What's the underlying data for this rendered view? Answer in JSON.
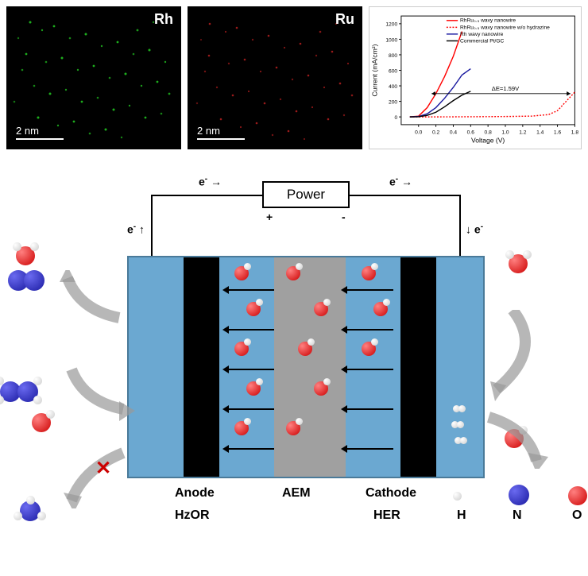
{
  "eds": {
    "rh": {
      "label": "Rh",
      "scale": "2  nm",
      "color": "#20c020"
    },
    "ru": {
      "label": "Ru",
      "scale": "2  nm",
      "color": "#c02020"
    }
  },
  "chart": {
    "type": "line",
    "xlabel": "Voltage (V)",
    "ylabel": "Current (mA/cm²)",
    "xlim": [
      -0.2,
      1.8
    ],
    "ylim": [
      -100,
      1300
    ],
    "xtick_step": 0.2,
    "ytick_step": 200,
    "label_fontsize": 9,
    "tick_fontsize": 7,
    "annotation": "ΔE=1.59V",
    "legend_fontsize": 7,
    "background": "#ffffff",
    "axes_color": "#000000",
    "series": [
      {
        "name": "RhRu₀.₅ wavy nanowire",
        "color": "#ff0000",
        "dash": "solid",
        "points": [
          [
            -0.1,
            0
          ],
          [
            0,
            10
          ],
          [
            0.1,
            120
          ],
          [
            0.2,
            300
          ],
          [
            0.3,
            520
          ],
          [
            0.4,
            780
          ],
          [
            0.5,
            1100
          ]
        ]
      },
      {
        "name": "RhRu₀.₅ wavy nanowire w/o hydrazine",
        "color": "#ff0000",
        "dash": "dotted",
        "points": [
          [
            -0.1,
            0
          ],
          [
            0.2,
            0
          ],
          [
            0.6,
            2
          ],
          [
            1.0,
            5
          ],
          [
            1.3,
            10
          ],
          [
            1.5,
            30
          ],
          [
            1.6,
            80
          ],
          [
            1.7,
            200
          ],
          [
            1.8,
            320
          ]
        ]
      },
      {
        "name": "Rh wavy nanowire",
        "color": "#1a1aa0",
        "dash": "solid",
        "points": [
          [
            -0.1,
            0
          ],
          [
            0,
            5
          ],
          [
            0.1,
            40
          ],
          [
            0.2,
            120
          ],
          [
            0.3,
            240
          ],
          [
            0.4,
            380
          ],
          [
            0.5,
            540
          ],
          [
            0.6,
            620
          ]
        ]
      },
      {
        "name": "Commercial Pt/GC",
        "color": "#000000",
        "dash": "solid",
        "points": [
          [
            -0.1,
            0
          ],
          [
            0,
            2
          ],
          [
            0.1,
            20
          ],
          [
            0.2,
            60
          ],
          [
            0.3,
            130
          ],
          [
            0.4,
            210
          ],
          [
            0.5,
            280
          ],
          [
            0.6,
            330
          ]
        ]
      }
    ]
  },
  "diagram": {
    "power_label": "Power",
    "electron_label": "e⁻",
    "plus": "+",
    "minus": "-",
    "labels": {
      "anode": "Anode",
      "aem": "AEM",
      "cathode": "Cathode",
      "hzor": "HzOR",
      "her": "HER",
      "h": "H",
      "n": "N",
      "o": "O"
    },
    "colors": {
      "electrolyte": "#6ba8d1",
      "electrode": "#000000",
      "membrane": "#a0a0a0",
      "oxygen": "#cc0000",
      "hydrogen": "#e8e8e8",
      "nitrogen": "#1a1aa0",
      "arrow_gray": "#999999",
      "red_x": "#cc0000"
    }
  }
}
